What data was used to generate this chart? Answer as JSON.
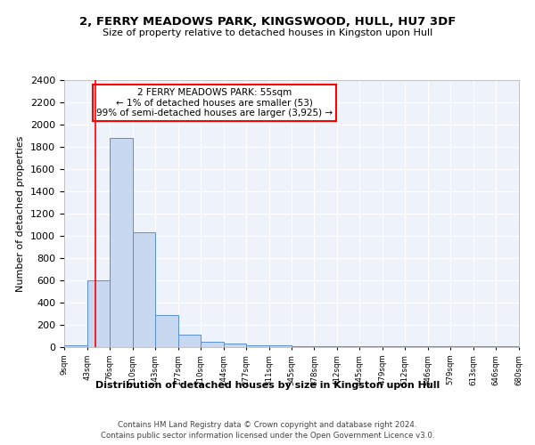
{
  "title": "2, FERRY MEADOWS PARK, KINGSWOOD, HULL, HU7 3DF",
  "subtitle": "Size of property relative to detached houses in Kingston upon Hull",
  "xlabel": "Distribution of detached houses by size in Kingston upon Hull",
  "ylabel": "Number of detached properties",
  "bar_color": "#c8d8f0",
  "bar_edge_color": "#5a8fd0",
  "bg_color": "#eef2fb",
  "grid_color": "#ffffff",
  "annotation_line1": "2 FERRY MEADOWS PARK: 55sqm",
  "annotation_line2": "← 1% of detached houses are smaller (53)",
  "annotation_line3": "99% of semi-detached houses are larger (3,925) →",
  "red_line_x": 55,
  "bin_edges": [
    9,
    43,
    76,
    110,
    143,
    177,
    210,
    244,
    277,
    311,
    345,
    378,
    412,
    445,
    479,
    512,
    546,
    579,
    613,
    646,
    680
  ],
  "bar_heights": [
    20,
    600,
    1880,
    1030,
    290,
    115,
    50,
    35,
    20,
    20,
    5,
    5,
    5,
    5,
    5,
    5,
    5,
    5,
    5,
    5
  ],
  "yticks": [
    0,
    200,
    400,
    600,
    800,
    1000,
    1200,
    1400,
    1600,
    1800,
    2000,
    2200,
    2400
  ],
  "ylim": [
    0,
    2400
  ],
  "footnote1": "Contains HM Land Registry data © Crown copyright and database right 2024.",
  "footnote2": "Contains public sector information licensed under the Open Government Licence v3.0."
}
